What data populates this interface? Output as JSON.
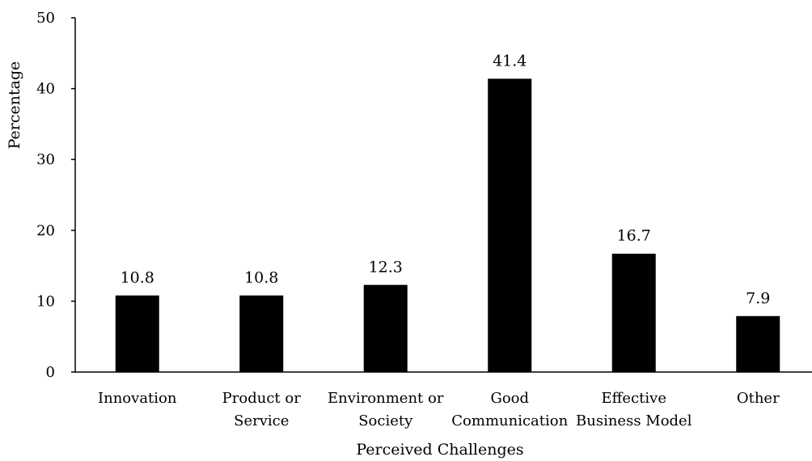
{
  "chart_data": {
    "type": "bar",
    "categories": [
      [
        "Innovation"
      ],
      [
        "Product or",
        "Service"
      ],
      [
        "Environment or",
        "Society"
      ],
      [
        "Good",
        "Communication"
      ],
      [
        "Effective",
        "Business Model"
      ],
      [
        "Other"
      ]
    ],
    "values": [
      10.8,
      10.8,
      12.3,
      41.4,
      16.7,
      7.9
    ],
    "data_labels": [
      "10.8",
      "10.8",
      "12.3",
      "41.4",
      "16.7",
      "7.9"
    ],
    "xlabel": "Perceived Challenges",
    "ylabel": "Percentage",
    "ylim": [
      0,
      50
    ],
    "yticks": [
      "0",
      "10",
      "20",
      "30",
      "40",
      "50"
    ],
    "grid": false,
    "legend": "none",
    "colors": {
      "bar": "#000000",
      "axis": "#000000"
    }
  }
}
